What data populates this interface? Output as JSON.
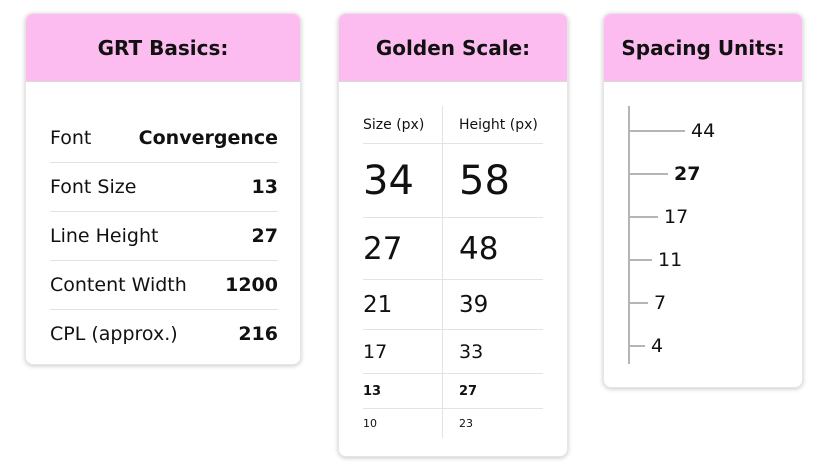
{
  "basics": {
    "title": "GRT Basics:",
    "rows": [
      {
        "label": "Font",
        "value": "Convergence"
      },
      {
        "label": "Font Size",
        "value": "13"
      },
      {
        "label": "Line Height",
        "value": "27"
      },
      {
        "label": "Content Width",
        "value": "1200"
      },
      {
        "label": "CPL (approx.)",
        "value": "216"
      }
    ]
  },
  "golden": {
    "title": "Golden Scale:",
    "col_size": "Size (px)",
    "col_height": "Height (px)",
    "rows": [
      {
        "size": "34",
        "height": "58"
      },
      {
        "size": "27",
        "height": "48"
      },
      {
        "size": "21",
        "height": "39"
      },
      {
        "size": "17",
        "height": "33"
      },
      {
        "size": "13",
        "height": "27"
      },
      {
        "size": "10",
        "height": "23"
      }
    ]
  },
  "spacing": {
    "title": "Spacing Units:",
    "units": [
      {
        "value": "44",
        "bold": false
      },
      {
        "value": "27",
        "bold": true
      },
      {
        "value": "17",
        "bold": false
      },
      {
        "value": "11",
        "bold": false
      },
      {
        "value": "7",
        "bold": false
      },
      {
        "value": "4",
        "bold": false
      }
    ]
  },
  "colors": {
    "header_bg": "#fdbcf0"
  }
}
